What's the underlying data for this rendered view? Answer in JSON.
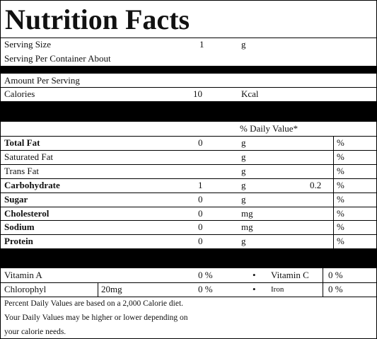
{
  "title": "Nutrition Facts",
  "serving": {
    "size_label": "Serving Size",
    "size_value": 1,
    "size_unit": "g",
    "per_container_label": "Serving Per Container About"
  },
  "amount_per_serving": "Amount Per Serving",
  "calories": {
    "label": "Calories",
    "value": 10,
    "unit": "Kcal"
  },
  "daily_value_header": "% Daily Value*",
  "nutrients": [
    {
      "name": "Total Fat",
      "bold": true,
      "amount": 0,
      "unit": "g",
      "percent_sign": "%"
    },
    {
      "name": "Saturated Fat",
      "bold": false,
      "unit": "g",
      "percent_sign": "%"
    },
    {
      "name": "Trans Fat",
      "bold": false,
      "unit": "g",
      "percent_sign": "%"
    },
    {
      "name": "Carbohydrate",
      "bold": true,
      "amount": 1,
      "unit": "g",
      "daily_value": 0.2,
      "percent_sign": "%"
    },
    {
      "name": "Sugar",
      "bold": true,
      "amount": 0,
      "unit": "g",
      "percent_sign": "%"
    },
    {
      "name": "Cholesterol",
      "bold": true,
      "amount": 0,
      "unit": "mg",
      "percent_sign": "%"
    },
    {
      "name": "Sodium",
      "bold": true,
      "amount": 0,
      "unit": "mg",
      "percent_sign": "%"
    },
    {
      "name": "Protein",
      "bold": true,
      "amount": 0,
      "unit": "g",
      "percent_sign": "%"
    }
  ],
  "vitamins": [
    {
      "left_name": "Vitamin A",
      "left_value": "0 %",
      "right_name": "Vitamin C",
      "right_value": "0 %"
    },
    {
      "left_name": "Chlorophyl",
      "left_amount": "20mg",
      "left_value": "0 %",
      "right_name": "Iron",
      "right_value": "0 %"
    }
  ],
  "footnotes": [
    "Percent Daily Values are based on a 2,000 Calorie diet.",
    "Your Daily Values may be higher or lower depending on",
    "your calorie needs."
  ]
}
